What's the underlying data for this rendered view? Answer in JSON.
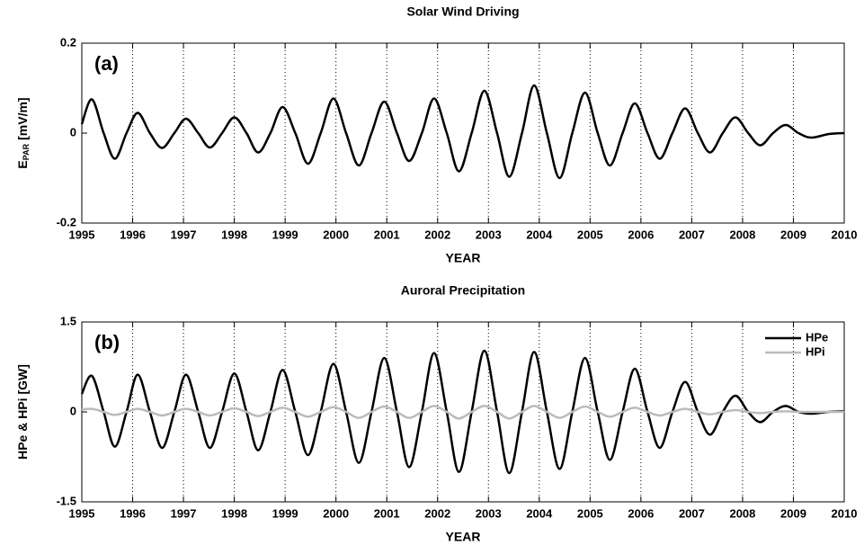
{
  "chart_data": [
    {
      "type": "line",
      "title": "Solar Wind Driving",
      "panel_label": "(a)",
      "xlabel": "YEAR",
      "ylabel": {
        "text": "E",
        "sub": "PAR",
        "unit": "[mV/m]"
      },
      "xlim": [
        1995,
        2010
      ],
      "xticks": [
        1995,
        1996,
        1997,
        1998,
        1999,
        2000,
        2001,
        2002,
        2003,
        2004,
        2005,
        2006,
        2007,
        2008,
        2009,
        2010
      ],
      "ylim": [
        -0.2,
        0.2
      ],
      "yticks": [
        -0.2,
        0,
        0.2
      ],
      "xgrid": true,
      "x": [
        1995,
        1995.2,
        1995.43,
        1995.65,
        1995.88,
        1996.1,
        1996.34,
        1996.58,
        1996.82,
        1997.05,
        1997.29,
        1997.52,
        1997.76,
        1998.0,
        1998.24,
        1998.47,
        1998.71,
        1998.95,
        1999.2,
        1999.45,
        1999.7,
        1999.95,
        2000.2,
        2000.45,
        2000.7,
        2000.95,
        2001.2,
        2001.44,
        2001.69,
        2001.93,
        2002.18,
        2002.42,
        2002.67,
        2002.92,
        2003.17,
        2003.41,
        2003.66,
        2003.9,
        2004.15,
        2004.4,
        2004.65,
        2004.9,
        2005.15,
        2005.39,
        2005.64,
        2005.88,
        2006.13,
        2006.37,
        2006.62,
        2006.87,
        2007.12,
        2007.36,
        2007.61,
        2007.86,
        2008.11,
        2008.35,
        2008.6,
        2008.85,
        2009.1,
        2009.35,
        2009.7,
        2010
      ],
      "series": [
        {
          "name": "EPAR",
          "color": "#000000",
          "values": [
            0.02,
            0.075,
            0,
            -0.057,
            0,
            0.045,
            0,
            -0.033,
            0,
            0.032,
            0,
            -0.032,
            0,
            0.035,
            0,
            -0.043,
            0,
            0.058,
            0,
            -0.068,
            0,
            0.077,
            0,
            -0.072,
            0,
            0.07,
            0,
            -0.062,
            0,
            0.077,
            0,
            -0.085,
            0,
            0.094,
            0,
            -0.097,
            0,
            0.106,
            0,
            -0.1,
            0,
            0.09,
            0,
            -0.072,
            0,
            0.066,
            0,
            -0.057,
            0,
            0.055,
            0,
            -0.043,
            0,
            0.035,
            0,
            -0.027,
            0,
            0.018,
            0,
            -0.01,
            -0.002,
            0
          ]
        }
      ]
    },
    {
      "type": "line",
      "title": "Auroral Precipitation",
      "panel_label": "(b)",
      "xlabel": "YEAR",
      "ylabel": {
        "text": "HPe & HPi [GW]"
      },
      "xlim": [
        1995,
        2010
      ],
      "xticks": [
        1995,
        1996,
        1997,
        1998,
        1999,
        2000,
        2001,
        2002,
        2003,
        2004,
        2005,
        2006,
        2007,
        2008,
        2009,
        2010
      ],
      "ylim": [
        -1.5,
        1.5
      ],
      "yticks": [
        -1.5,
        0,
        1.5
      ],
      "xgrid": true,
      "legend": "upper right",
      "x": [
        1995,
        1995.2,
        1995.43,
        1995.65,
        1995.88,
        1996.1,
        1996.34,
        1996.58,
        1996.82,
        1997.05,
        1997.29,
        1997.52,
        1997.76,
        1998.0,
        1998.24,
        1998.47,
        1998.71,
        1998.95,
        1999.2,
        1999.45,
        1999.7,
        1999.95,
        2000.2,
        2000.45,
        2000.7,
        2000.95,
        2001.2,
        2001.44,
        2001.69,
        2001.93,
        2002.18,
        2002.42,
        2002.67,
        2002.92,
        2003.17,
        2003.41,
        2003.66,
        2003.9,
        2004.15,
        2004.4,
        2004.65,
        2004.9,
        2005.15,
        2005.39,
        2005.64,
        2005.88,
        2006.13,
        2006.37,
        2006.62,
        2006.87,
        2007.12,
        2007.36,
        2007.61,
        2007.86,
        2008.11,
        2008.35,
        2008.6,
        2008.85,
        2009.1,
        2009.35,
        2009.7,
        2010
      ],
      "series": [
        {
          "name": "HPe",
          "color": "#000000",
          "values": [
            0.3,
            0.6,
            0,
            -0.58,
            0,
            0.62,
            0,
            -0.6,
            0,
            0.62,
            0,
            -0.6,
            0,
            0.64,
            0,
            -0.64,
            0,
            0.7,
            0,
            -0.72,
            0,
            0.8,
            0,
            -0.85,
            0,
            0.9,
            0,
            -0.92,
            0,
            0.98,
            0,
            -1.0,
            0,
            1.02,
            0,
            -1.02,
            0,
            1.0,
            0,
            -0.95,
            0,
            0.9,
            0,
            -0.8,
            0,
            0.72,
            0,
            -0.6,
            0,
            0.5,
            0,
            -0.38,
            0,
            0.27,
            0,
            -0.17,
            0,
            0.1,
            0,
            -0.03,
            0,
            0.01
          ]
        },
        {
          "name": "HPi",
          "color": "#bbbbbb",
          "values": [
            0.04,
            0.05,
            0,
            -0.05,
            0,
            0.05,
            0,
            -0.06,
            0,
            0.05,
            0,
            -0.06,
            0,
            0.06,
            0,
            -0.07,
            0,
            0.07,
            0,
            -0.08,
            0,
            0.08,
            0,
            -0.1,
            0,
            0.09,
            0,
            -0.1,
            0,
            0.1,
            0,
            -0.11,
            0,
            0.1,
            0,
            -0.11,
            0,
            0.1,
            0,
            -0.1,
            0,
            0.09,
            0,
            -0.08,
            0,
            0.07,
            0,
            -0.06,
            0,
            0.05,
            0,
            -0.04,
            0,
            0.03,
            0,
            -0.02,
            0,
            0.01,
            0,
            0,
            0,
            0
          ]
        }
      ]
    }
  ]
}
